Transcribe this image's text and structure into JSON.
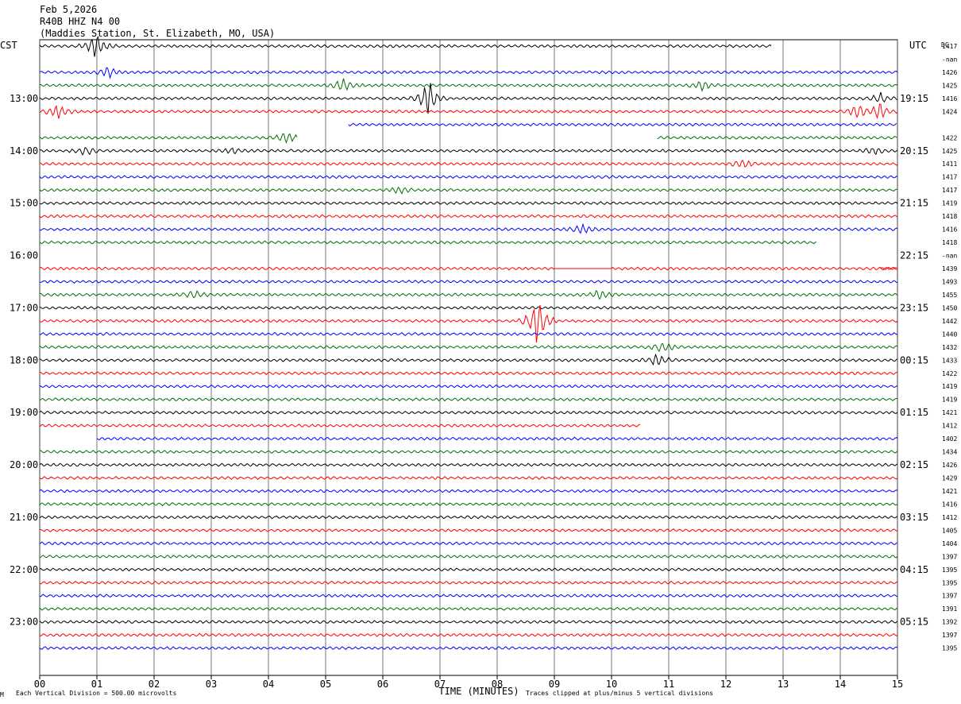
{
  "header": {
    "date": "Feb 5,2026",
    "channel": "R40B HHZ N4 00",
    "station": "(Maddies Station, St. Elizabeth, MO, USA)"
  },
  "chart_data": {
    "type": "line",
    "title": "Feb 5,2026  R40B HHZ N4 00  (Maddies Station, St. Elizabeth, MO, USA)",
    "left_axis_label": "CST",
    "right_axis_label": "UTC",
    "dc_label": "DC",
    "xlabel": "TIME (MINUTES)",
    "x_ticks": [
      "00",
      "01",
      "02",
      "03",
      "04",
      "05",
      "06",
      "07",
      "08",
      "09",
      "10",
      "11",
      "12",
      "13",
      "14",
      "15"
    ],
    "xlim": [
      0,
      15
    ],
    "left_time_labels": [
      "13:00",
      "14:00",
      "15:00",
      "16:00",
      "17:00",
      "18:00",
      "19:00",
      "20:00",
      "21:00",
      "22:00",
      "23:00"
    ],
    "right_time_labels": [
      "19:15",
      "20:15",
      "21:15",
      "22:15",
      "23:15",
      "00:15",
      "01:15",
      "02:15",
      "03:15",
      "04:15",
      "05:15"
    ],
    "trace_colors": [
      "#000000",
      "#ff0000",
      "#0000ff",
      "#007000"
    ],
    "dc_values": [
      "1417",
      "-nan",
      "1426",
      "1425",
      "1416",
      "1424",
      "",
      "1422",
      "1425",
      "1411",
      "1417",
      "1417",
      "1419",
      "1418",
      "1416",
      "1418",
      "-nan",
      "1439",
      "1493",
      "1455",
      "1450",
      "1442",
      "1440",
      "1432",
      "1433",
      "1422",
      "1419",
      "1419",
      "1421",
      "1412",
      "1402",
      "1434",
      "1426",
      "1429",
      "1421",
      "1416",
      "1412",
      "1405",
      "1404",
      "1397",
      "1395",
      "1395",
      "1397",
      "1391",
      "1392",
      "1397",
      "1395"
    ],
    "trace_segments_minutes": [
      [
        0,
        12.8
      ],
      null,
      [
        0,
        15
      ],
      [
        0,
        15
      ],
      [
        0,
        15
      ],
      [
        0,
        15
      ],
      [
        5.4,
        15
      ],
      [
        0,
        4.5
      ],
      [
        0,
        15
      ],
      [
        0,
        15
      ],
      [
        0,
        15
      ],
      [
        0,
        15
      ],
      [
        0,
        15
      ],
      [
        0,
        15
      ],
      [
        0,
        15
      ],
      [
        0,
        13.6
      ],
      null,
      [
        0,
        15
      ],
      [
        0,
        15
      ],
      [
        0,
        15
      ],
      [
        0,
        15
      ],
      [
        0,
        15
      ],
      [
        0,
        15
      ],
      [
        0,
        15
      ],
      [
        0,
        15
      ],
      [
        0,
        15
      ],
      [
        0,
        15
      ],
      [
        0,
        15
      ],
      [
        0,
        15
      ],
      [
        0,
        10.5
      ],
      [
        1,
        15
      ],
      [
        0,
        15
      ],
      [
        0,
        15
      ],
      [
        0,
        15
      ],
      [
        0,
        15
      ],
      [
        0,
        15
      ],
      [
        0,
        15
      ],
      [
        0,
        15
      ],
      [
        0,
        15
      ],
      [
        0,
        15
      ],
      [
        0,
        15
      ],
      [
        0,
        15
      ],
      [
        0,
        15
      ],
      [
        0,
        15
      ],
      [
        0,
        15
      ],
      [
        0,
        15
      ],
      [
        0,
        15
      ]
    ],
    "extra_segments_minutes": [
      [
        7,
        10.8,
        15
      ],
      [
        17,
        14.7,
        15
      ]
    ],
    "events": [
      {
        "trace": 0,
        "minute": 1.0,
        "amplitude": 2.5
      },
      {
        "trace": 2,
        "minute": 1.2,
        "amplitude": 1.2
      },
      {
        "trace": 3,
        "minute": 5.3,
        "amplitude": 1.5
      },
      {
        "trace": 3,
        "minute": 11.6,
        "amplitude": 1.0
      },
      {
        "trace": 4,
        "minute": 6.8,
        "amplitude": 3.5
      },
      {
        "trace": 4,
        "minute": 14.7,
        "amplitude": 1.0
      },
      {
        "trace": 5,
        "minute": 0.3,
        "amplitude": 1.5
      },
      {
        "trace": 5,
        "minute": 14.3,
        "amplitude": 1.2
      },
      {
        "trace": 5,
        "minute": 14.7,
        "amplitude": 1.5
      },
      {
        "trace": 7,
        "minute": 4.3,
        "amplitude": 1.3
      },
      {
        "trace": 8,
        "minute": 0.8,
        "amplitude": 0.8
      },
      {
        "trace": 8,
        "minute": 3.4,
        "amplitude": 0.6
      },
      {
        "trace": 8,
        "minute": 14.6,
        "amplitude": 0.8
      },
      {
        "trace": 9,
        "minute": 12.3,
        "amplitude": 1.0
      },
      {
        "trace": 11,
        "minute": 6.3,
        "amplitude": 0.7
      },
      {
        "trace": 14,
        "minute": 9.5,
        "amplitude": 0.9
      },
      {
        "trace": 19,
        "minute": 2.7,
        "amplitude": 0.8
      },
      {
        "trace": 19,
        "minute": 9.8,
        "amplitude": 1.0
      },
      {
        "trace": 21,
        "minute": 8.7,
        "amplitude": 4.5
      },
      {
        "trace": 23,
        "minute": 10.9,
        "amplitude": 1.2
      },
      {
        "trace": 24,
        "minute": 10.8,
        "amplitude": 1.5
      }
    ],
    "flat_segments": [
      {
        "trace": 17,
        "from": 9.0,
        "to": 10.0
      }
    ],
    "grid": true
  },
  "footer": {
    "scale_note": "Each Vertical Division =  500.00 microvolts",
    "clip_note": "Traces clipped at plus/minus 5 vertical divisions"
  }
}
